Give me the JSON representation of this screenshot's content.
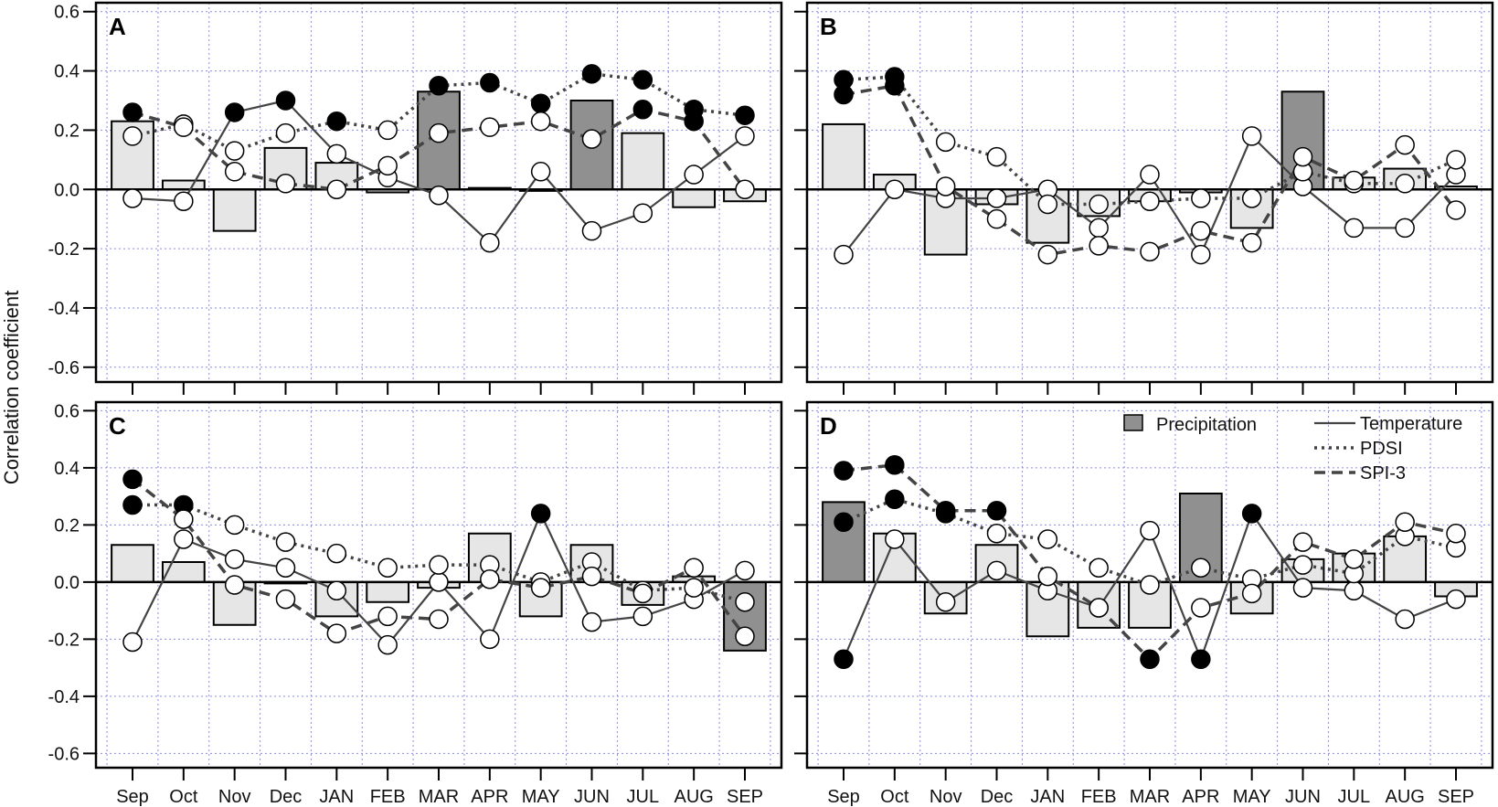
{
  "figure": {
    "ylabel": "Correlation coefficient"
  },
  "legend": {
    "precipitation": "Precipitation",
    "temperature": "Temperature",
    "pdsi": "PDSI",
    "spi3": "SPI-3"
  },
  "colors": {
    "bar_sig": "#909090",
    "bar_nonsig": "#e6e6e6",
    "line": "#444444",
    "grid": "#8a8ae6",
    "marker_sig": "#000000",
    "marker_nonsig": "#ffffff"
  },
  "chart_data": [
    {
      "panel": "A",
      "type": "bar+line",
      "categories": [
        "Sep",
        "Oct",
        "Nov",
        "Dec",
        "JAN",
        "FEB",
        "MAR",
        "APR",
        "MAY",
        "JUN",
        "JUL",
        "AUG",
        "SEP"
      ],
      "ylim": [
        -0.65,
        0.63
      ],
      "yticks": [
        "0.6",
        "0.4",
        "0.2",
        "0.0",
        "-0.2",
        "-0.4",
        "-0.6"
      ],
      "grid": true,
      "legend_position": "none",
      "precipitation": {
        "values": [
          0.23,
          0.03,
          -0.14,
          0.14,
          0.09,
          -0.01,
          0.33,
          0.005,
          -0.005,
          0.3,
          0.19,
          -0.06,
          -0.04
        ],
        "significant": [
          false,
          false,
          false,
          false,
          false,
          false,
          true,
          false,
          false,
          true,
          false,
          false,
          false
        ]
      },
      "temperature": {
        "values": [
          -0.03,
          -0.04,
          0.26,
          0.3,
          0.12,
          0.04,
          -0.02,
          -0.18,
          0.06,
          -0.14,
          -0.08,
          0.05,
          0.18
        ],
        "significant": [
          false,
          false,
          true,
          true,
          false,
          false,
          false,
          false,
          false,
          false,
          false,
          false,
          false
        ]
      },
      "pdsi": {
        "values": [
          0.18,
          0.22,
          0.13,
          0.19,
          0.23,
          0.2,
          0.35,
          0.36,
          0.29,
          0.39,
          0.37,
          0.27,
          0.25
        ],
        "significant": [
          false,
          false,
          false,
          false,
          true,
          false,
          true,
          true,
          true,
          true,
          true,
          true,
          true
        ]
      },
      "spi3": {
        "values": [
          0.26,
          0.21,
          0.06,
          0.02,
          0.0,
          0.08,
          0.19,
          0.21,
          0.23,
          0.17,
          0.27,
          0.23,
          0.0
        ],
        "significant": [
          true,
          false,
          false,
          false,
          false,
          false,
          false,
          false,
          false,
          false,
          true,
          true,
          false
        ]
      }
    },
    {
      "panel": "B",
      "type": "bar+line",
      "categories": [
        "Sep",
        "Oct",
        "Nov",
        "Dec",
        "JAN",
        "FEB",
        "MAR",
        "APR",
        "MAY",
        "JUN",
        "JUL",
        "AUG",
        "SEP"
      ],
      "ylim": [
        -0.65,
        0.63
      ],
      "yticks": [
        "0.6",
        "0.4",
        "0.2",
        "0.0",
        "-0.2",
        "-0.4",
        "-0.6"
      ],
      "grid": true,
      "legend_position": "none",
      "precipitation": {
        "values": [
          0.22,
          0.05,
          -0.22,
          -0.05,
          -0.18,
          -0.09,
          -0.04,
          -0.01,
          -0.13,
          0.33,
          0.04,
          0.07,
          0.01
        ],
        "significant": [
          false,
          false,
          false,
          false,
          false,
          false,
          false,
          false,
          false,
          true,
          false,
          false,
          false
        ]
      },
      "temperature": {
        "values": [
          -0.22,
          0.0,
          -0.03,
          -0.03,
          0.0,
          -0.13,
          0.05,
          -0.22,
          0.18,
          0.01,
          -0.13,
          -0.13,
          0.05
        ],
        "significant": [
          false,
          false,
          false,
          false,
          false,
          false,
          false,
          false,
          false,
          false,
          false,
          false,
          false
        ]
      },
      "pdsi": {
        "values": [
          0.37,
          0.38,
          0.16,
          0.11,
          -0.05,
          -0.05,
          -0.04,
          -0.03,
          -0.03,
          0.06,
          0.02,
          0.02,
          0.1
        ],
        "significant": [
          true,
          true,
          false,
          false,
          false,
          false,
          false,
          false,
          false,
          false,
          false,
          false,
          false
        ]
      },
      "spi3": {
        "values": [
          0.32,
          0.35,
          0.01,
          -0.1,
          -0.22,
          -0.19,
          -0.21,
          -0.14,
          -0.18,
          0.11,
          0.03,
          0.15,
          -0.07
        ],
        "significant": [
          true,
          true,
          false,
          false,
          false,
          false,
          false,
          false,
          false,
          false,
          false,
          false,
          false
        ]
      }
    },
    {
      "panel": "C",
      "type": "bar+line",
      "categories": [
        "Sep",
        "Oct",
        "Nov",
        "Dec",
        "JAN",
        "FEB",
        "MAR",
        "APR",
        "MAY",
        "JUN",
        "JUL",
        "AUG",
        "SEP"
      ],
      "ylim": [
        -0.65,
        0.63
      ],
      "yticks": [
        "0.6",
        "0.4",
        "0.2",
        "0.0",
        "-0.2",
        "-0.4",
        "-0.6"
      ],
      "grid": true,
      "legend_position": "none",
      "precipitation": {
        "values": [
          0.13,
          0.07,
          -0.15,
          0.0,
          -0.12,
          -0.07,
          -0.02,
          0.17,
          -0.12,
          0.13,
          -0.08,
          0.02,
          -0.24
        ],
        "significant": [
          false,
          false,
          false,
          false,
          false,
          false,
          false,
          false,
          false,
          false,
          false,
          false,
          true
        ]
      },
      "temperature": {
        "values": [
          -0.21,
          0.15,
          0.08,
          0.05,
          -0.03,
          -0.22,
          0.0,
          -0.2,
          0.24,
          -0.14,
          -0.12,
          -0.06,
          0.04
        ],
        "significant": [
          false,
          false,
          false,
          false,
          false,
          false,
          false,
          false,
          true,
          false,
          false,
          false,
          false
        ]
      },
      "pdsi": {
        "values": [
          0.27,
          0.27,
          0.2,
          0.14,
          0.1,
          0.05,
          0.06,
          0.06,
          0.0,
          0.07,
          -0.03,
          -0.02,
          -0.07
        ],
        "significant": [
          true,
          true,
          false,
          false,
          false,
          false,
          false,
          false,
          false,
          false,
          false,
          false,
          false
        ]
      },
      "spi3": {
        "values": [
          0.36,
          0.22,
          -0.01,
          -0.06,
          -0.18,
          -0.12,
          -0.13,
          0.01,
          -0.02,
          0.02,
          -0.04,
          0.05,
          -0.19
        ],
        "significant": [
          true,
          false,
          false,
          false,
          false,
          false,
          false,
          false,
          false,
          false,
          false,
          false,
          false
        ]
      }
    },
    {
      "panel": "D",
      "type": "bar+line",
      "categories": [
        "Sep",
        "Oct",
        "Nov",
        "Dec",
        "JAN",
        "FEB",
        "MAR",
        "APR",
        "MAY",
        "JUN",
        "JUL",
        "AUG",
        "SEP"
      ],
      "ylim": [
        -0.65,
        0.63
      ],
      "yticks": [
        "0.6",
        "0.4",
        "0.2",
        "0.0",
        "-0.2",
        "-0.4",
        "-0.6"
      ],
      "grid": true,
      "legend_position": "top-right",
      "precipitation": {
        "values": [
          0.28,
          0.17,
          -0.11,
          0.13,
          -0.19,
          -0.16,
          -0.16,
          0.31,
          -0.11,
          0.08,
          0.1,
          0.16,
          -0.05
        ],
        "significant": [
          true,
          false,
          false,
          false,
          false,
          false,
          false,
          true,
          false,
          false,
          false,
          false,
          false
        ]
      },
      "temperature": {
        "values": [
          -0.27,
          0.15,
          -0.07,
          0.04,
          -0.03,
          -0.09,
          0.18,
          -0.27,
          0.24,
          -0.02,
          -0.03,
          -0.13,
          -0.06
        ],
        "significant": [
          true,
          false,
          false,
          false,
          false,
          false,
          false,
          true,
          true,
          false,
          false,
          false,
          false
        ]
      },
      "pdsi": {
        "values": [
          0.21,
          0.29,
          0.24,
          0.17,
          0.15,
          0.05,
          -0.01,
          0.05,
          0.01,
          0.06,
          0.03,
          0.16,
          0.12
        ],
        "significant": [
          true,
          true,
          true,
          false,
          false,
          false,
          false,
          false,
          false,
          false,
          false,
          false,
          false
        ]
      },
      "spi3": {
        "values": [
          0.39,
          0.41,
          0.25,
          0.25,
          0.02,
          -0.09,
          -0.27,
          -0.09,
          -0.04,
          0.14,
          0.08,
          0.21,
          0.17
        ],
        "significant": [
          true,
          true,
          true,
          true,
          false,
          false,
          true,
          false,
          false,
          false,
          false,
          false,
          false
        ]
      }
    }
  ]
}
